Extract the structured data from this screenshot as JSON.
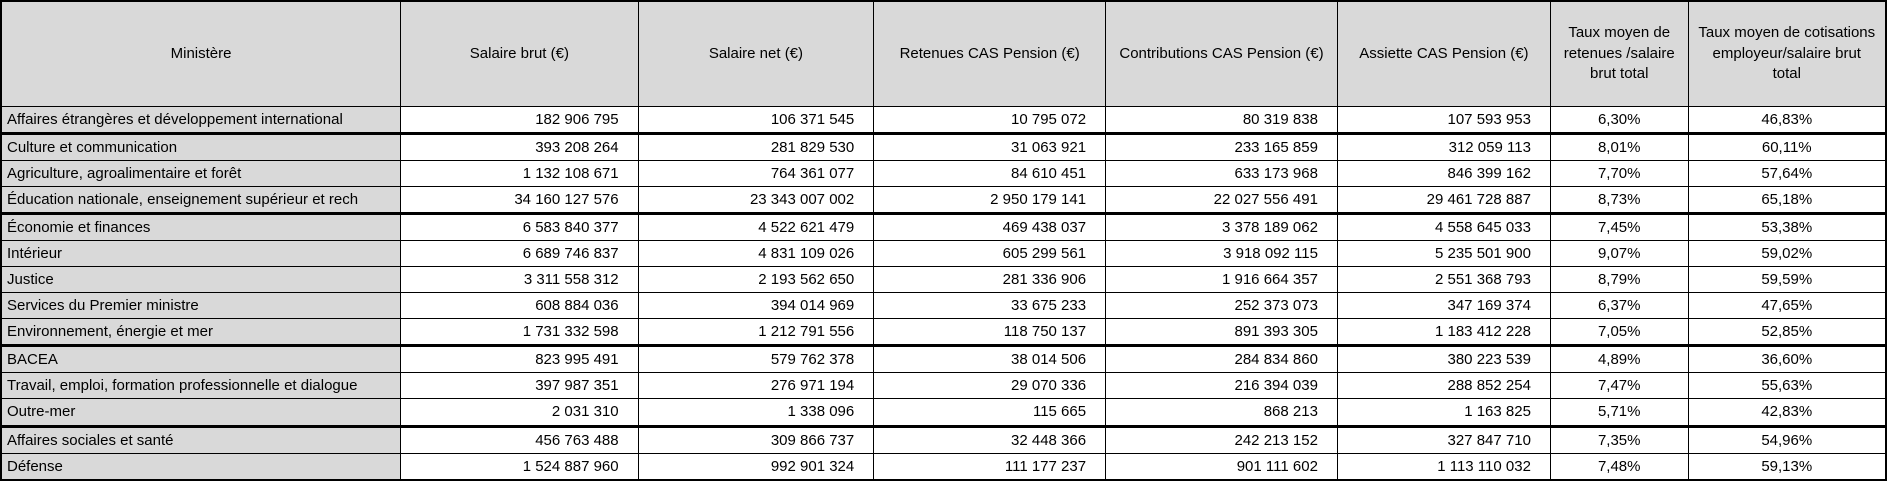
{
  "colors": {
    "header_background": "#d9d9d9",
    "row_label_background": "#d9d9d9",
    "cell_background": "#ffffff",
    "border": "#000000",
    "text": "#000000"
  },
  "chart_data": {
    "type": "table",
    "title": "",
    "columns": [
      "Ministère",
      "Salaire brut (€)",
      "Salaire net (€)",
      "Retenues CAS Pension (€)",
      "Contributions CAS Pension (€)",
      "Assiette CAS Pension (€)",
      "Taux moyen de retenues /salaire brut total",
      "Taux moyen de cotisations employeur/salaire brut total"
    ],
    "rows": [
      [
        "Affaires étrangères et développement international",
        "182 906 795",
        "106 371 545",
        "10 795 072",
        "80 319 838",
        "107 593 953",
        "6,30%",
        "46,83%"
      ],
      [
        "Culture et communication",
        "393 208 264",
        "281 829 530",
        "31 063 921",
        "233 165 859",
        "312 059 113",
        "8,01%",
        "60,11%"
      ],
      [
        "Agriculture, agroalimentaire et forêt",
        "1 132 108 671",
        "764 361 077",
        "84 610 451",
        "633 173 968",
        "846 399 162",
        "7,70%",
        "57,64%"
      ],
      [
        "Éducation nationale, enseignement supérieur et rech",
        "34 160 127 576",
        "23 343 007 002",
        "2 950 179 141",
        "22 027 556 491",
        "29 461 728 887",
        "8,73%",
        "65,18%"
      ],
      [
        "Économie et finances",
        "6 583 840 377",
        "4 522 621 479",
        "469 438 037",
        "3 378 189 062",
        "4 558 645 033",
        "7,45%",
        "53,38%"
      ],
      [
        "Intérieur",
        "6 689 746 837",
        "4 831 109 026",
        "605 299 561",
        "3 918 092 115",
        "5 235 501 900",
        "9,07%",
        "59,02%"
      ],
      [
        "Justice",
        "3 311 558 312",
        "2 193 562 650",
        "281 336 906",
        "1 916 664 357",
        "2 551 368 793",
        "8,79%",
        "59,59%"
      ],
      [
        "Services du Premier ministre",
        "608 884 036",
        "394 014 969",
        "33 675 233",
        "252 373 073",
        "347 169 374",
        "6,37%",
        "47,65%"
      ],
      [
        "Environnement, énergie et mer",
        "1 731 332 598",
        "1 212 791 556",
        "118 750 137",
        "891 393 305",
        "1 183 412 228",
        "7,05%",
        "52,85%"
      ],
      [
        "BACEA",
        "823 995 491",
        "579 762 378",
        "38 014 506",
        "284 834 860",
        "380 223 539",
        "4,89%",
        "36,60%"
      ],
      [
        "Travail, emploi, formation professionnelle et dialogue",
        "397 987 351",
        "276 971 194",
        "29 070 336",
        "216 394 039",
        "288 852 254",
        "7,47%",
        "55,63%"
      ],
      [
        "Outre-mer",
        "2 031 310",
        "1 338 096",
        "115 665",
        "868 213",
        "1 163 825",
        "5,71%",
        "42,83%"
      ],
      [
        "Affaires sociales et santé",
        "456 763 488",
        "309 866 737",
        "32 448 366",
        "242 213 152",
        "327 847 710",
        "7,35%",
        "54,96%"
      ],
      [
        "Défense",
        "1 524 887 960",
        "992 901 324",
        "111 177 237",
        "901 111 602",
        "1 113 110 032",
        "7,48%",
        "59,13%"
      ]
    ]
  }
}
